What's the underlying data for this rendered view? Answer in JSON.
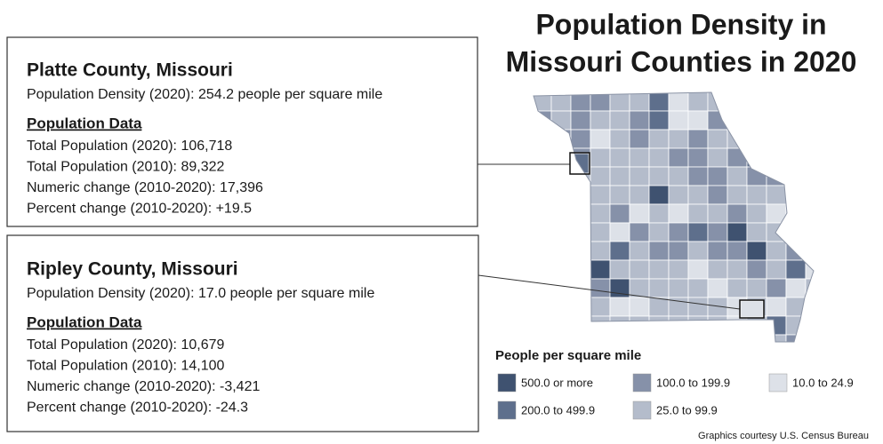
{
  "title": {
    "lines": [
      "Population Density in",
      "Missouri Counties in 2020"
    ]
  },
  "counties": [
    {
      "name": "Platte County, Missouri",
      "density": "Population Density (2020): 254.2 people per square mile",
      "section": "Population Data",
      "rows": [
        "Total Population (2020): 106,718",
        "Total Population (2010): 89,322",
        "Numeric change (2010-2020): 17,396",
        "Percent change (2010-2020): +19.5"
      ]
    },
    {
      "name": "Ripley County, Missouri",
      "density": "Population Density (2020): 17.0 people per square mile",
      "section": "Population Data",
      "rows": [
        "Total Population (2020): 10,679",
        "Total Population (2010): 14,100",
        "Numeric change (2010-2020): -3,421",
        "Percent change (2010-2020): -24.3"
      ]
    }
  ],
  "legend": {
    "title": "People per square mile",
    "items": [
      {
        "label": "500.0 or more",
        "color": "#3f5270"
      },
      {
        "label": "200.0 to 499.9",
        "color": "#5e6f8c"
      },
      {
        "label": "100.0 to 199.9",
        "color": "#8691a9"
      },
      {
        "label": "25.0 to 99.9",
        "color": "#b4bccb"
      },
      {
        "label": "10.0 to 24.9",
        "color": "#dde1e8"
      }
    ]
  },
  "credit": "Graphics courtesy U.S. Census Bureau"
}
